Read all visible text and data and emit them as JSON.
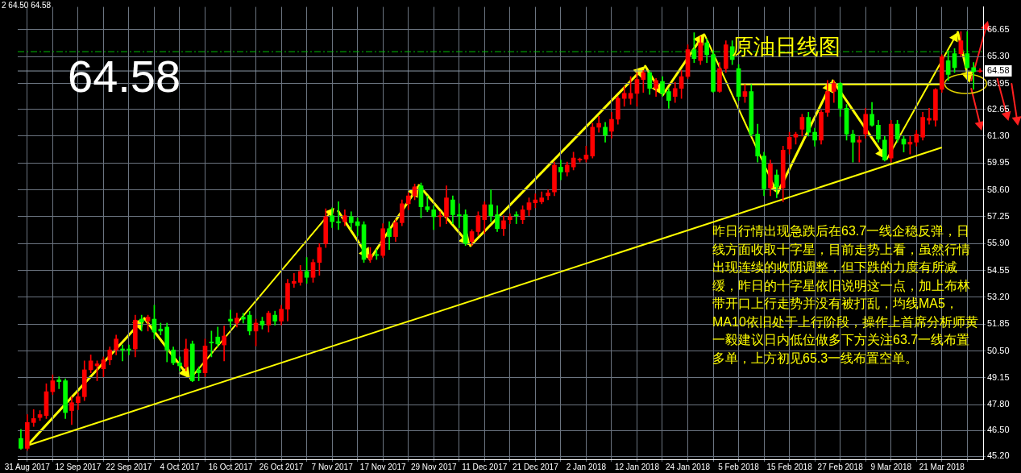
{
  "chart_data": {
    "type": "candlestick",
    "title": "原油日线图",
    "annotations": [
      "2 64.50 64.58",
      "64.58",
      "昨日行情出现急跌后在63.7一线企稳反弹，日线方面收取十字星，目前走势上看，虽然行情出现连续的收阴调整，但下跌的力度有所减缓，昨日的十字星依旧说明这一点，加上布林带开口上行走势并没有被打乱，均线MA5，MA10依旧处于上行阶段，操作上首席分析师黄一毅建议日内低位做多下方关注63.7一线布置多单，上方初见65.3一线布置空单。"
    ],
    "categories": [
      null,
      "31 Aug 2017",
      null,
      null,
      null,
      null,
      null,
      null,
      null,
      "12 Sep 2017",
      null,
      null,
      null,
      null,
      null,
      null,
      null,
      "22 Sep 2017",
      null,
      null,
      null,
      null,
      null,
      null,
      null,
      "4 Oct 2017",
      null,
      null,
      null,
      null,
      null,
      null,
      null,
      "16 Oct 2017",
      null,
      null,
      null,
      null,
      null,
      null,
      null,
      "26 Oct 2017",
      null,
      null,
      null,
      null,
      null,
      null,
      null,
      "7 Nov 2017",
      null,
      null,
      null,
      null,
      null,
      null,
      null,
      "17 Nov 2017",
      null,
      null,
      null,
      null,
      null,
      null,
      null,
      "29 Nov 2017",
      null,
      null,
      null,
      null,
      null,
      null,
      null,
      "11 Dec 2017",
      null,
      null,
      null,
      null,
      null,
      null,
      null,
      "21 Dec 2017",
      null,
      null,
      null,
      null,
      null,
      null,
      null,
      "2 Jan 2018",
      null,
      null,
      null,
      null,
      null,
      null,
      null,
      "12 Jan 2018",
      null,
      null,
      null,
      null,
      null,
      null,
      null,
      "24 Jan 2018",
      null,
      null,
      null,
      null,
      null,
      null,
      null,
      "5 Feb 2018",
      null,
      null,
      null,
      null,
      null,
      null,
      null,
      "15 Feb 2018",
      null,
      null,
      null,
      null,
      null,
      null,
      null,
      "27 Feb 2018",
      null,
      null,
      null,
      null,
      null,
      null,
      null,
      "9 Mar 2018",
      null,
      null,
      null,
      null,
      null,
      null,
      null,
      "21 Mar 2018",
      null,
      null,
      null,
      null,
      null,
      null
    ],
    "ohlc": [
      [
        46.1,
        46.56,
        45.55,
        45.6
      ],
      [
        45.6,
        47.3,
        45.5,
        46.9
      ],
      [
        46.9,
        47.55,
        46.7,
        47.1
      ],
      [
        47.15,
        47.5,
        47.0,
        47.3
      ],
      [
        47.25,
        48.85,
        47.1,
        48.45
      ],
      [
        48.45,
        49.3,
        48.3,
        49.0
      ],
      [
        49.05,
        49.2,
        48.6,
        48.95
      ],
      [
        49.0,
        49.1,
        47.1,
        47.4
      ],
      [
        47.5,
        48.2,
        46.8,
        47.9
      ],
      [
        47.9,
        48.4,
        47.55,
        48.2
      ],
      [
        48.2,
        50.0,
        48.0,
        49.55
      ],
      [
        49.55,
        50.3,
        49.4,
        50.0
      ],
      [
        49.75,
        50.0,
        49.0,
        49.85
      ],
      [
        49.6,
        50.2,
        49.2,
        50.05
      ],
      [
        50.05,
        50.7,
        49.8,
        50.55
      ],
      [
        50.55,
        51.3,
        50.3,
        51.1
      ],
      [
        50.6,
        50.8,
        50.0,
        50.55
      ],
      [
        50.6,
        50.8,
        50.3,
        50.55
      ],
      [
        50.6,
        52.3,
        50.2,
        52.05
      ],
      [
        52.1,
        52.3,
        51.5,
        51.95
      ],
      [
        52.0,
        52.3,
        51.5,
        52.2
      ],
      [
        52.1,
        52.8,
        51.1,
        51.45
      ],
      [
        51.6,
        51.9,
        51.3,
        51.5
      ],
      [
        51.7,
        51.9,
        49.95,
        50.55
      ],
      [
        50.55,
        50.7,
        49.8,
        49.9
      ],
      [
        49.9,
        50.2,
        49.5,
        49.75
      ],
      [
        49.7,
        51.1,
        49.5,
        50.6
      ],
      [
        50.85,
        51.0,
        48.95,
        49.0
      ],
      [
        49.55,
        49.7,
        49.0,
        49.4
      ],
      [
        49.4,
        51.1,
        49.2,
        50.75
      ],
      [
        50.95,
        51.5,
        50.2,
        50.9
      ],
      [
        51.2,
        51.7,
        50.7,
        50.85
      ],
      [
        50.8,
        51.75,
        50.0,
        51.25
      ],
      [
        52.1,
        52.55,
        51.7,
        52.0
      ],
      [
        51.9,
        52.4,
        51.7,
        52.15
      ],
      [
        52.2,
        52.4,
        51.9,
        52.1
      ],
      [
        52.3,
        52.5,
        51.3,
        51.5
      ],
      [
        51.5,
        52.1,
        50.75,
        51.9
      ],
      [
        52.0,
        52.2,
        51.6,
        51.8
      ],
      [
        51.8,
        52.5,
        51.45,
        52.4
      ],
      [
        52.3,
        52.5,
        51.8,
        52.0
      ],
      [
        52.0,
        52.8,
        51.8,
        52.6
      ],
      [
        52.6,
        54.1,
        52.0,
        53.9
      ],
      [
        53.9,
        54.4,
        53.7,
        54.0
      ],
      [
        53.95,
        54.8,
        53.8,
        54.5
      ],
      [
        54.5,
        55.2,
        53.9,
        54.2
      ],
      [
        54.2,
        55.1,
        53.95,
        54.95
      ],
      [
        54.95,
        55.9,
        54.3,
        55.7
      ],
      [
        55.9,
        57.65,
        55.7,
        57.25
      ],
      [
        57.3,
        57.7,
        56.7,
        57.0
      ],
      [
        57.0,
        58.0,
        56.6,
        56.95
      ],
      [
        57.0,
        57.6,
        56.8,
        57.3
      ],
      [
        57.25,
        57.5,
        56.6,
        56.95
      ],
      [
        57.0,
        57.2,
        56.3,
        56.8
      ],
      [
        56.85,
        57.0,
        54.95,
        55.1
      ],
      [
        55.1,
        55.7,
        54.95,
        55.35
      ],
      [
        55.35,
        55.6,
        55.1,
        55.3
      ],
      [
        55.3,
        56.9,
        55.2,
        56.65
      ],
      [
        56.65,
        57.0,
        55.6,
        56.25
      ],
      [
        56.25,
        57.1,
        56.0,
        56.95
      ],
      [
        56.95,
        58.1,
        56.8,
        57.9
      ],
      [
        57.9,
        58.45,
        57.6,
        58.3
      ],
      [
        58.3,
        58.9,
        58.1,
        58.75
      ],
      [
        58.8,
        58.95,
        57.2,
        57.75
      ],
      [
        57.75,
        58.3,
        57.5,
        57.6
      ],
      [
        57.6,
        57.8,
        56.6,
        57.25
      ],
      [
        57.25,
        57.5,
        56.75,
        57.3
      ],
      [
        57.25,
        58.8,
        56.9,
        58.2
      ],
      [
        58.1,
        58.3,
        56.9,
        57.35
      ],
      [
        57.35,
        57.9,
        56.7,
        57.3
      ],
      [
        57.35,
        57.6,
        55.8,
        55.9
      ],
      [
        56.0,
        56.6,
        55.8,
        56.5
      ],
      [
        56.5,
        57.5,
        56.3,
        57.3
      ],
      [
        57.1,
        58.0,
        56.4,
        57.85
      ],
      [
        57.85,
        58.6,
        57.0,
        57.3
      ],
      [
        57.35,
        57.8,
        56.5,
        56.65
      ],
      [
        56.65,
        57.3,
        56.3,
        57.05
      ],
      [
        57.1,
        57.4,
        56.9,
        57.25
      ],
      [
        57.35,
        57.5,
        56.9,
        57.3
      ],
      [
        57.1,
        57.8,
        56.9,
        57.6
      ],
      [
        57.6,
        58.2,
        57.3,
        57.95
      ],
      [
        57.95,
        58.4,
        57.7,
        58.1
      ],
      [
        58.0,
        58.5,
        57.9,
        58.2
      ],
      [
        58.3,
        58.6,
        58.1,
        58.45
      ],
      [
        58.5,
        60.0,
        58.3,
        59.85
      ],
      [
        59.75,
        60.1,
        59.1,
        59.5
      ],
      [
        59.5,
        60.0,
        59.3,
        59.85
      ],
      [
        59.75,
        60.5,
        59.6,
        60.2
      ],
      [
        60.1,
        60.2,
        60.0,
        60.15
      ],
      [
        60.15,
        60.8,
        60.0,
        60.35
      ],
      [
        60.3,
        61.95,
        60.2,
        61.75
      ],
      [
        61.75,
        62.3,
        61.5,
        61.95
      ],
      [
        61.75,
        62.0,
        61.0,
        61.35
      ],
      [
        61.55,
        62.5,
        61.2,
        62.15
      ],
      [
        62.15,
        63.3,
        61.9,
        63.2
      ],
      [
        63.2,
        63.8,
        62.8,
        63.45
      ],
      [
        63.2,
        64.3,
        62.9,
        63.45
      ],
      [
        63.45,
        64.5,
        62.8,
        64.15
      ],
      [
        64.15,
        64.6,
        63.5,
        64.5
      ],
      [
        64.5,
        64.6,
        63.4,
        63.7
      ],
      [
        63.7,
        64.2,
        63.3,
        64.1
      ],
      [
        64.05,
        64.3,
        63.3,
        63.45
      ],
      [
        63.55,
        63.7,
        62.7,
        63.1
      ],
      [
        63.3,
        64.0,
        63.0,
        63.7
      ],
      [
        63.7,
        64.6,
        63.2,
        64.3
      ],
      [
        64.3,
        65.9,
        64.2,
        65.65
      ],
      [
        65.65,
        66.5,
        65.0,
        65.2
      ],
      [
        65.1,
        66.3,
        64.9,
        66.0
      ],
      [
        66.0,
        66.2,
        65.0,
        65.4
      ],
      [
        65.4,
        65.6,
        63.5,
        63.55
      ],
      [
        63.55,
        65.0,
        63.5,
        64.7
      ],
      [
        64.7,
        66.1,
        64.5,
        65.9
      ],
      [
        65.8,
        66.1,
        64.9,
        65.15
      ],
      [
        64.7,
        64.9,
        63.1,
        63.3
      ],
      [
        63.3,
        63.9,
        63.0,
        63.55
      ],
      [
        63.55,
        63.9,
        61.3,
        61.4
      ],
      [
        61.4,
        61.9,
        60.0,
        60.3
      ],
      [
        60.3,
        60.5,
        58.3,
        58.65
      ],
      [
        58.7,
        60.1,
        58.3,
        59.9
      ],
      [
        59.35,
        59.6,
        58.2,
        58.75
      ],
      [
        58.7,
        60.8,
        58.0,
        60.6
      ],
      [
        60.65,
        61.5,
        60.4,
        61.25
      ],
      [
        61.25,
        61.5,
        60.9,
        61.4
      ],
      [
        61.65,
        62.4,
        61.3,
        62.25
      ],
      [
        62.25,
        62.5,
        61.3,
        61.5
      ],
      [
        61.5,
        61.7,
        60.8,
        61.1
      ],
      [
        61.1,
        62.6,
        60.9,
        62.5
      ],
      [
        62.5,
        64.1,
        62.3,
        63.55
      ],
      [
        63.55,
        64.1,
        63.0,
        63.95
      ],
      [
        63.95,
        64.0,
        62.3,
        62.7
      ],
      [
        62.7,
        62.9,
        61.1,
        61.4
      ],
      [
        61.4,
        61.6,
        60.0,
        61.0
      ],
      [
        61.0,
        61.3,
        60.0,
        61.1
      ],
      [
        61.4,
        62.7,
        61.2,
        62.4
      ],
      [
        62.4,
        63.0,
        61.8,
        61.85
      ],
      [
        61.85,
        62.1,
        61.0,
        61.15
      ],
      [
        61.1,
        61.3,
        60.05,
        60.1
      ],
      [
        60.2,
        62.1,
        60.0,
        61.9
      ],
      [
        61.9,
        62.1,
        61.0,
        61.15
      ],
      [
        61.15,
        61.3,
        60.5,
        60.9
      ],
      [
        60.9,
        61.3,
        60.4,
        61.0
      ],
      [
        61.0,
        61.6,
        60.8,
        61.4
      ],
      [
        61.25,
        62.5,
        61.1,
        62.25
      ],
      [
        62.1,
        62.7,
        61.9,
        62.2
      ],
      [
        62.1,
        63.7,
        61.8,
        63.65
      ],
      [
        63.65,
        65.4,
        63.5,
        65.3
      ],
      [
        65.1,
        65.6,
        64.1,
        64.4
      ],
      [
        65.45,
        65.7,
        64.5,
        64.75
      ],
      [
        65.45,
        66.55,
        65.3,
        66.1
      ],
      [
        65.45,
        66.55,
        64.7,
        64.75
      ],
      [
        64.75,
        65.0,
        63.65,
        64.55
      ],
      [
        64.55,
        64.7,
        64.5,
        64.58
      ]
    ],
    "colors": [
      "#00ff00",
      "#ff0000",
      "#ff0000",
      "#ff0000",
      "#ff0000",
      "#ff0000",
      "#00ff00",
      "#00ff00",
      "#ff0000",
      "#ff0000",
      "#ff0000",
      "#ff0000",
      "#ff0000",
      "#ff0000",
      "#ff0000",
      "#ff0000",
      "#00ff00",
      "#00ff00",
      "#ff0000",
      "#00ff00",
      "#ff0000",
      "#00ff00",
      "#00ff00",
      "#00ff00",
      "#00ff00",
      "#00ff00",
      "#ff0000",
      "#00ff00",
      "#00ff00",
      "#ff0000",
      "#00ff00",
      "#00ff00",
      "#ff0000",
      "#00ff00",
      "#ff0000",
      "#00ff00",
      "#00ff00",
      "#ff0000",
      "#00ff00",
      "#ff0000",
      "#00ff00",
      "#ff0000",
      "#ff0000",
      "#ff0000",
      "#ff0000",
      "#00ff00",
      "#ff0000",
      "#ff0000",
      "#ff0000",
      "#00ff00",
      "#00ff00",
      "#ff0000",
      "#00ff00",
      "#00ff00",
      "#00ff00",
      "#ff0000",
      "#00ff00",
      "#ff0000",
      "#00ff00",
      "#ff0000",
      "#ff0000",
      "#ff0000",
      "#ff0000",
      "#00ff00",
      "#00ff00",
      "#00ff00",
      "#ff0000",
      "#ff0000",
      "#00ff00",
      "#00ff00",
      "#00ff00",
      "#ff0000",
      "#ff0000",
      "#ff0000",
      "#00ff00",
      "#00ff00",
      "#ff0000",
      "#ff0000",
      "#00ff00",
      "#ff0000",
      "#ff0000",
      "#ff0000",
      "#ff0000",
      "#ff0000",
      "#ff0000",
      "#00ff00",
      "#ff0000",
      "#ff0000",
      "#ff0000",
      "#ff0000",
      "#ff0000",
      "#ff0000",
      "#00ff00",
      "#ff0000",
      "#ff0000",
      "#ff0000",
      "#ff0000",
      "#ff0000",
      "#ff0000",
      "#00ff00",
      "#ff0000",
      "#00ff00",
      "#00ff00",
      "#ff0000",
      "#ff0000",
      "#ff0000",
      "#00ff00",
      "#ff0000",
      "#00ff00",
      "#00ff00",
      "#ff0000",
      "#ff0000",
      "#00ff00",
      "#00ff00",
      "#ff0000",
      "#00ff00",
      "#00ff00",
      "#00ff00",
      "#ff0000",
      "#00ff00",
      "#ff0000",
      "#ff0000",
      "#ff0000",
      "#ff0000",
      "#00ff00",
      "#00ff00",
      "#ff0000",
      "#ff0000",
      "#ff0000",
      "#00ff00",
      "#00ff00",
      "#00ff00",
      "#ff0000",
      "#ff0000",
      "#00ff00",
      "#00ff00",
      "#00ff00",
      "#ff0000",
      "#00ff00",
      "#00ff00",
      "#ff0000",
      "#ff0000",
      "#ff0000",
      "#ff0000",
      "#ff0000",
      "#ff0000",
      "#00ff00",
      "#00ff00",
      "#ff0000",
      "#00ff00",
      "#00ff00",
      "#ff0000"
    ],
    "series": [
      {
        "type": "line",
        "color": "#ffff00",
        "x": [
          "31 Aug 2017",
          "21 Mar 2018"
        ],
        "values": [
          45.74,
          60.73
        ]
      },
      {
        "type": "line",
        "color": "#ffff00",
        "x": [
          "5 Feb 2018",
          "21 Mar 2018"
        ],
        "values": [
          63.9,
          63.9
        ]
      }
    ],
    "ref_lines": [
      {
        "axis": "y",
        "value": 65.55,
        "color": "#00c000",
        "line_style": "dashed"
      },
      {
        "axis": "y",
        "value": 64.58,
        "label": "64.58",
        "color": "#8c9aa8"
      }
    ],
    "ylim": [
      45.05,
      67.8
    ],
    "yticks": [
      {
        "value": 45.2,
        "label": "45.20"
      },
      {
        "value": 46.5,
        "label": "46.50"
      },
      {
        "value": 47.8,
        "label": "47.80"
      },
      {
        "value": 49.15,
        "label": "49.15"
      },
      {
        "value": 50.5,
        "label": "50.50"
      },
      {
        "value": 51.85,
        "label": "51.85"
      },
      {
        "value": 53.2,
        "label": "53.20"
      },
      {
        "value": 54.55,
        "label": "54.55"
      },
      {
        "value": 55.9,
        "label": "55.90"
      },
      {
        "value": 57.25,
        "label": "57.25"
      },
      {
        "value": 58.6,
        "label": "58.60"
      },
      {
        "value": 59.95,
        "label": "59.95"
      },
      {
        "value": 61.3,
        "label": "61.30"
      },
      {
        "value": 62.65,
        "label": "62.65"
      },
      {
        "value": 63.95,
        "label": "63.95"
      },
      {
        "value": 65.3,
        "label": "65.30"
      },
      {
        "value": 66.65,
        "label": "66.65"
      }
    ],
    "grid": true
  }
}
